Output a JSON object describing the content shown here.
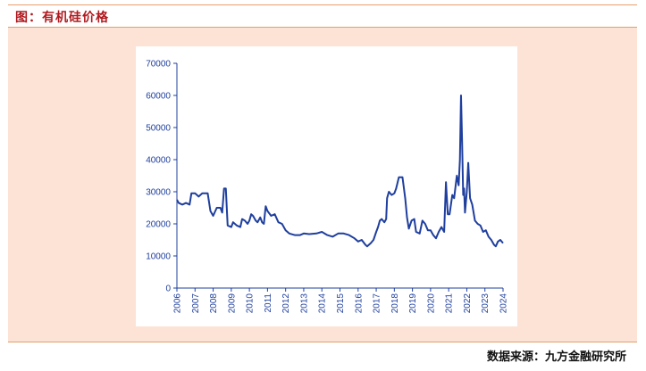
{
  "figure": {
    "title": "图：有机硅价格",
    "source": "数据来源：九方金融研究所"
  },
  "colors": {
    "frame_bg": "#fde3d6",
    "title": "#b0191e",
    "series": "#1f3f9e",
    "axis": "#1f3f9e"
  },
  "chart_data": {
    "type": "line",
    "title": "",
    "xlabel": "",
    "ylabel": "",
    "xlim": [
      2006,
      2024
    ],
    "ylim": [
      0,
      70000
    ],
    "yticks": [
      0,
      10000,
      20000,
      30000,
      40000,
      50000,
      60000,
      70000
    ],
    "xticks": [
      "2006",
      "2007",
      "2008",
      "2009",
      "2010",
      "2011",
      "2012",
      "2013",
      "2014",
      "2015",
      "2016",
      "2017",
      "2018",
      "2019",
      "2020",
      "2021",
      "2022",
      "2023",
      "2024"
    ],
    "grid": false,
    "legend": "none",
    "series": [
      {
        "points": [
          [
            2006.0,
            27500
          ],
          [
            2006.1,
            26500
          ],
          [
            2006.3,
            26000
          ],
          [
            2006.5,
            26500
          ],
          [
            2006.7,
            26000
          ],
          [
            2006.8,
            29500
          ],
          [
            2007.0,
            29500
          ],
          [
            2007.2,
            28500
          ],
          [
            2007.4,
            29500
          ],
          [
            2007.7,
            29500
          ],
          [
            2007.85,
            24000
          ],
          [
            2008.0,
            22500
          ],
          [
            2008.2,
            25000
          ],
          [
            2008.4,
            25000
          ],
          [
            2008.5,
            23500
          ],
          [
            2008.6,
            31000
          ],
          [
            2008.7,
            31000
          ],
          [
            2008.8,
            19500
          ],
          [
            2009.0,
            19000
          ],
          [
            2009.1,
            20500
          ],
          [
            2009.3,
            19500
          ],
          [
            2009.5,
            19000
          ],
          [
            2009.6,
            21500
          ],
          [
            2009.75,
            21000
          ],
          [
            2009.9,
            20000
          ],
          [
            2010.0,
            21000
          ],
          [
            2010.1,
            23000
          ],
          [
            2010.2,
            22500
          ],
          [
            2010.35,
            21000
          ],
          [
            2010.45,
            20500
          ],
          [
            2010.6,
            22000
          ],
          [
            2010.7,
            20500
          ],
          [
            2010.8,
            20000
          ],
          [
            2010.9,
            25500
          ],
          [
            2011.0,
            24000
          ],
          [
            2011.2,
            22500
          ],
          [
            2011.4,
            23000
          ],
          [
            2011.6,
            20500
          ],
          [
            2011.8,
            20000
          ],
          [
            2012.0,
            18000
          ],
          [
            2012.2,
            17000
          ],
          [
            2012.5,
            16500
          ],
          [
            2012.8,
            16500
          ],
          [
            2013.0,
            17000
          ],
          [
            2013.3,
            16800
          ],
          [
            2013.7,
            17000
          ],
          [
            2014.0,
            17500
          ],
          [
            2014.3,
            16500
          ],
          [
            2014.6,
            16000
          ],
          [
            2014.9,
            17000
          ],
          [
            2015.2,
            17000
          ],
          [
            2015.5,
            16500
          ],
          [
            2015.8,
            15500
          ],
          [
            2016.0,
            14500
          ],
          [
            2016.2,
            15000
          ],
          [
            2016.4,
            13500
          ],
          [
            2016.5,
            13000
          ],
          [
            2016.7,
            14000
          ],
          [
            2016.85,
            15000
          ],
          [
            2017.0,
            17500
          ],
          [
            2017.1,
            19000
          ],
          [
            2017.2,
            21000
          ],
          [
            2017.3,
            21500
          ],
          [
            2017.45,
            20500
          ],
          [
            2017.55,
            21500
          ],
          [
            2017.6,
            28000
          ],
          [
            2017.7,
            30000
          ],
          [
            2017.85,
            29000
          ],
          [
            2018.0,
            29500
          ],
          [
            2018.1,
            31000
          ],
          [
            2018.25,
            34500
          ],
          [
            2018.45,
            34500
          ],
          [
            2018.6,
            28000
          ],
          [
            2018.7,
            22000
          ],
          [
            2018.8,
            18500
          ],
          [
            2018.95,
            21000
          ],
          [
            2019.1,
            21500
          ],
          [
            2019.2,
            17500
          ],
          [
            2019.4,
            17000
          ],
          [
            2019.55,
            21000
          ],
          [
            2019.7,
            20000
          ],
          [
            2019.85,
            18000
          ],
          [
            2020.0,
            18000
          ],
          [
            2020.15,
            16500
          ],
          [
            2020.3,
            15500
          ],
          [
            2020.45,
            17500
          ],
          [
            2020.6,
            19000
          ],
          [
            2020.75,
            17500
          ],
          [
            2020.85,
            33000
          ],
          [
            2020.95,
            23000
          ],
          [
            2021.05,
            23000
          ],
          [
            2021.2,
            29000
          ],
          [
            2021.3,
            28000
          ],
          [
            2021.45,
            35000
          ],
          [
            2021.55,
            32000
          ],
          [
            2021.62,
            40000
          ],
          [
            2021.68,
            60000
          ],
          [
            2021.73,
            48000
          ],
          [
            2021.8,
            29000
          ],
          [
            2021.85,
            31000
          ],
          [
            2021.9,
            23500
          ],
          [
            2022.0,
            30000
          ],
          [
            2022.08,
            39000
          ],
          [
            2022.18,
            28000
          ],
          [
            2022.3,
            26000
          ],
          [
            2022.45,
            21000
          ],
          [
            2022.6,
            20000
          ],
          [
            2022.75,
            19500
          ],
          [
            2022.9,
            17500
          ],
          [
            2023.05,
            18000
          ],
          [
            2023.2,
            16000
          ],
          [
            2023.35,
            15000
          ],
          [
            2023.5,
            13500
          ],
          [
            2023.6,
            13000
          ],
          [
            2023.72,
            14500
          ],
          [
            2023.85,
            15000
          ],
          [
            2024.0,
            14000
          ]
        ]
      }
    ]
  }
}
